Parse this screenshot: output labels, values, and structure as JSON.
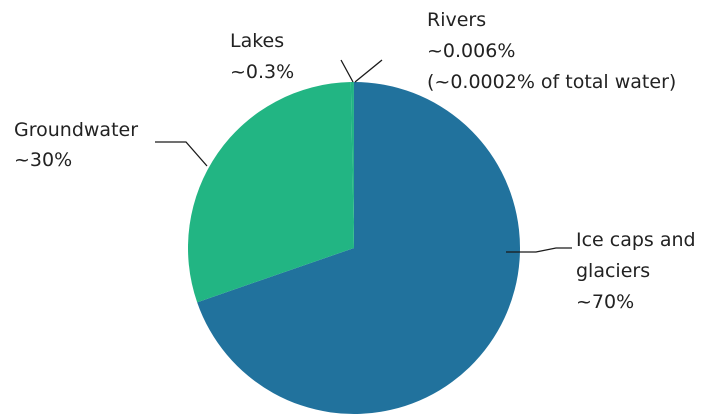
{
  "chart_data": {
    "type": "pie",
    "title": "",
    "start": "12 o'clock, clockwise",
    "slices": [
      {
        "name": "Ice caps and glaciers",
        "value": 69.694,
        "color": "#21729d",
        "label_lines": [
          "Ice caps and",
          "glaciers",
          "~70%"
        ]
      },
      {
        "name": "Groundwater",
        "value": 30.0,
        "color": "#22b583",
        "label_lines": [
          "Groundwater",
          "~30%"
        ]
      },
      {
        "name": "Lakes",
        "value": 0.3,
        "color": "#22b583",
        "label_lines": [
          "Lakes",
          "~0.3%"
        ]
      },
      {
        "name": "Rivers",
        "value": 0.006,
        "color": "#21729d",
        "label_lines": [
          "Rivers",
          "~0.006%",
          "(~0.0002% of total water)"
        ]
      }
    ],
    "legend": "none (direct labels with leader lines)"
  }
}
